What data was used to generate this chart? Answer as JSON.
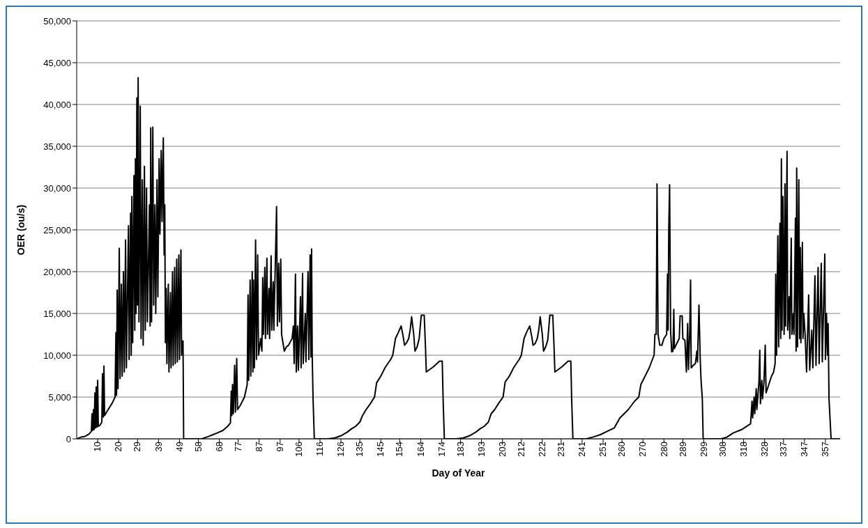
{
  "chart_data": {
    "type": "line",
    "xlabel": "Day of Year",
    "ylabel": "OER (ou/s)",
    "xlim": [
      0,
      364
    ],
    "xticks": [
      10,
      20,
      29,
      39,
      49,
      58,
      68,
      77,
      87,
      97,
      106,
      116,
      126,
      135,
      145,
      154,
      164,
      174,
      183,
      193,
      203,
      212,
      222,
      231,
      241,
      251,
      260,
      270,
      280,
      289,
      299,
      308,
      318,
      328,
      337,
      347,
      357
    ],
    "ylim": [
      0,
      50000
    ],
    "yticks": [
      0,
      {
        "value": 5000,
        "label": "5,000"
      },
      {
        "value": 10000,
        "label": "10,000"
      },
      {
        "value": 15000,
        "label": "15,000"
      },
      {
        "value": 20000,
        "label": "20,000"
      },
      {
        "value": 25000,
        "label": "25,000"
      },
      {
        "value": 30000,
        "label": "30,000"
      },
      {
        "value": 35000,
        "label": "35,000"
      },
      {
        "value": 40000,
        "label": "40,000"
      },
      {
        "value": 45000,
        "label": "45,000"
      },
      {
        "value": 50000,
        "label": "50,000"
      }
    ],
    "grid": "y",
    "line_style": "solid",
    "series": [
      {
        "color": "#000000",
        "x": [
          0,
          2,
          4,
          6,
          7,
          7.3,
          7.6,
          8,
          8.3,
          8.7,
          9,
          9.3,
          9.7,
          10,
          10.3,
          11,
          12,
          12.3,
          12.7,
          13,
          13.3,
          15,
          17,
          18.3,
          18.7,
          19,
          19.3,
          19.7,
          20.3,
          20.7,
          21.3,
          21.7,
          22.3,
          22.7,
          23.3,
          23.7,
          24.7,
          25,
          25.7,
          26,
          26.3,
          26.7,
          27.3,
          27.7,
          28,
          28.3,
          28.7,
          29,
          29.3,
          29.7,
          30.3,
          30.7,
          31.3,
          31.7,
          32.3,
          32.7,
          33.3,
          33.7,
          34.7,
          35,
          35.3,
          35.7,
          36.3,
          36.7,
          37.3,
          37.7,
          38.3,
          38.7,
          39.3,
          39.7,
          40.3,
          40.7,
          41.3,
          41.7,
          42,
          42.3,
          42.7,
          43,
          43.7,
          44,
          44.7,
          45,
          45.7,
          46,
          46.7,
          47,
          47.7,
          48,
          48.7,
          49,
          49.7,
          50,
          50.3,
          50.7,
          51,
          59.7,
          63,
          66,
          69.7,
          72,
          73.3,
          73.7,
          74,
          74.3,
          74.7,
          75.3,
          75.7,
          76.3,
          76.7,
          78,
          80,
          81.3,
          81.7,
          82,
          82.7,
          83,
          83.7,
          84,
          84.3,
          84.7,
          85.3,
          85.7,
          86.3,
          86.7,
          87.7,
          88.3,
          88.7,
          89,
          89.7,
          90,
          90.7,
          91,
          91.7,
          92,
          92.7,
          93,
          93.7,
          94,
          95,
          95.3,
          95.7,
          96.3,
          96.7,
          97.3,
          97.7,
          99,
          100,
          101,
          102.7,
          103.3,
          103.7,
          104.3,
          104.7,
          105.3,
          105.7,
          106.7,
          107,
          107.7,
          108,
          109,
          109.3,
          110.3,
          110.7,
          111.3,
          111.7,
          112,
          112.3,
          112.7,
          113.3,
          119.7,
          123,
          126.3,
          129,
          131,
          133,
          135,
          136.3,
          138,
          140,
          142,
          143,
          145,
          147,
          149.7,
          150.7,
          152,
          153.3,
          154.7,
          155.7,
          156.3,
          157.3,
          158.3,
          159,
          159.7,
          160.7,
          161.3,
          162.3,
          163.3,
          164.3,
          165.7,
          166.3,
          166.7,
          170,
          173,
          174.3,
          174.7,
          175.3,
          181,
          184.3,
          187.6,
          190.3,
          192.3,
          194.3,
          196.3,
          197.6,
          199.3,
          201.3,
          203.3,
          204.3,
          206.3,
          208.3,
          211,
          212,
          213.3,
          214.6,
          216,
          217,
          217.6,
          218.6,
          219.6,
          220.3,
          221,
          222,
          222.6,
          223.6,
          224.6,
          225.6,
          227,
          227.6,
          228,
          231.3,
          234.3,
          235.6,
          236,
          236.6,
          243,
          246,
          249.7,
          253,
          256.3,
          259,
          263,
          266,
          268,
          269,
          271,
          273,
          274.5,
          275.3,
          275.7,
          276.3,
          276.5,
          276.7,
          277.2,
          278,
          279,
          280,
          281.3,
          281.7,
          282,
          282.3,
          282.7,
          283.2,
          283.7,
          284.3,
          284.7,
          285,
          286.3,
          287.3,
          287.7,
          288.7,
          289,
          290,
          290.7,
          291.3,
          291.7,
          292.3,
          292.7,
          293,
          294,
          295,
          295.7,
          296,
          296.7,
          297.3,
          297.7,
          298.3,
          298.7,
          307.3,
          310,
          313,
          317,
          321.3,
          322,
          322.3,
          323,
          323.3,
          324,
          324.3,
          325.3,
          325.7,
          326,
          326.7,
          327,
          327.7,
          328.3,
          328.7,
          330,
          331.3,
          332.3,
          333,
          333.3,
          333.7,
          334.3,
          334.7,
          335.3,
          335.7,
          336,
          336.3,
          336.7,
          337.3,
          337.7,
          338,
          338.7,
          339,
          339.7,
          340,
          340.7,
          341,
          341.7,
          342,
          342.7,
          343,
          343.3,
          343.7,
          344.3,
          344.7,
          345,
          345.3,
          346,
          346.3,
          346.7,
          347.3,
          348,
          349,
          349.5,
          350.5,
          351,
          352,
          352.5,
          353.5,
          354,
          355,
          355.5,
          356.7,
          357,
          357.5,
          358,
          358.3,
          358.7,
          359.7,
          364
        ],
        "values": [
          0,
          200,
          300,
          600,
          900,
          3000,
          1000,
          3500,
          1100,
          5500,
          1300,
          6200,
          1400,
          7000,
          1500,
          1600,
          2000,
          7800,
          2600,
          8700,
          2800,
          3500,
          4300,
          5000,
          12700,
          5200,
          17800,
          6000,
          22800,
          7200,
          18500,
          7500,
          20000,
          8000,
          23800,
          8500,
          25500,
          9500,
          27000,
          10000,
          29000,
          11500,
          31500,
          13000,
          33500,
          15000,
          40800,
          16000,
          43200,
          14000,
          39800,
          12000,
          31000,
          11200,
          32600,
          13000,
          30000,
          14000,
          28000,
          13500,
          37200,
          14000,
          37300,
          16000,
          28000,
          15000,
          31000,
          17000,
          33500,
          24500,
          34500,
          26000,
          36000,
          22000,
          28000,
          11500,
          18000,
          9000,
          18500,
          8000,
          17500,
          8500,
          20000,
          8800,
          20500,
          9000,
          21500,
          9200,
          22000,
          9500,
          22600,
          10000,
          11700,
          11700,
          0,
          0,
          300,
          600,
          1000,
          1500,
          1900,
          5700,
          2800,
          6500,
          3000,
          8800,
          3200,
          9600,
          3500,
          4000,
          5000,
          6500,
          17200,
          7000,
          19000,
          7500,
          20000,
          8000,
          19000,
          8500,
          23800,
          9500,
          22000,
          10000,
          12000,
          10500,
          19300,
          12500,
          20500,
          12000,
          21600,
          12500,
          18000,
          12000,
          21900,
          13000,
          18800,
          13000,
          24200,
          27800,
          13500,
          21000,
          14000,
          21500,
          12500,
          10500,
          11000,
          11200,
          12000,
          13500,
          9000,
          19700,
          8000,
          13500,
          8200,
          17000,
          8500,
          19800,
          9000,
          15000,
          9200,
          20000,
          9500,
          22000,
          9800,
          22700,
          10000,
          4800,
          0,
          0,
          100,
          400,
          800,
          1200,
          1500,
          2000,
          2800,
          3500,
          4200,
          5000,
          6700,
          7500,
          8500,
          9500,
          10000,
          12000,
          12700,
          13500,
          12200,
          11200,
          11500,
          12000,
          13000,
          14600,
          12500,
          10500,
          11000,
          12000,
          14800,
          14800,
          11000,
          8000,
          8600,
          9300,
          9300,
          4800,
          0,
          0,
          100,
          400,
          800,
          1200,
          1500,
          2000,
          3000,
          3500,
          4300,
          5000,
          6800,
          7500,
          8500,
          9500,
          10000,
          12000,
          12800,
          13500,
          12200,
          11200,
          11400,
          12000,
          13000,
          14600,
          12500,
          10500,
          11000,
          11800,
          14800,
          14800,
          11000,
          8000,
          8600,
          9300,
          9300,
          4800,
          0,
          0,
          200,
          500,
          900,
          1300,
          2500,
          3500,
          4500,
          5000,
          6500,
          7500,
          8500,
          9500,
          10000,
          12500,
          12500,
          20500,
          30500,
          12500,
          11200,
          11200,
          12000,
          12500,
          19700,
          13000,
          25100,
          30400,
          12800,
          10400,
          10500,
          15500,
          10800,
          11500,
          12000,
          14700,
          14700,
          12000,
          11800,
          8000,
          13800,
          8300,
          12800,
          19000,
          8500,
          8800,
          9000,
          10500,
          9200,
          16000,
          9500,
          7000,
          4800,
          0,
          0,
          200,
          700,
          1100,
          1800,
          4500,
          2500,
          5000,
          3000,
          6000,
          3500,
          6800,
          10600,
          4200,
          7000,
          4800,
          6800,
          11200,
          5500,
          6500,
          7500,
          8000,
          9000,
          19700,
          10000,
          24300,
          11000,
          25800,
          12000,
          33500,
          13000,
          29000,
          12500,
          30500,
          13500,
          34400,
          13000,
          17000,
          12000,
          24000,
          12500,
          15000,
          12500,
          26400,
          10500,
          32400,
          11000,
          31000,
          12000,
          22900,
          11500,
          23500,
          12000,
          15000,
          12500,
          8000,
          17200,
          8200,
          13000,
          8500,
          19500,
          8800,
          20500,
          9000,
          21000,
          9200,
          22100,
          9500,
          15000,
          10000,
          13800,
          4800,
          0,
          0
        ]
      }
    ]
  }
}
